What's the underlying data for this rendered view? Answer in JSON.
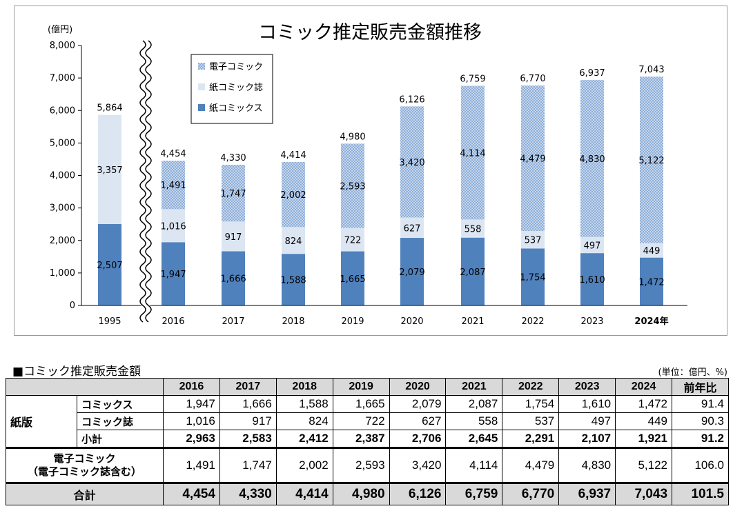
{
  "chart_data": {
    "type": "bar",
    "stacked": true,
    "title": "コミック推定販売金額推移",
    "ylabel": "(億円)",
    "ylim": [
      0,
      8000
    ],
    "y_ticks": [
      "8,000",
      "7,000",
      "6,000",
      "5,000",
      "4,000",
      "3,000",
      "2,000",
      "1,000",
      "0"
    ],
    "y_tick_values": [
      8000,
      7000,
      6000,
      5000,
      4000,
      3000,
      2000,
      1000,
      0
    ],
    "categories": [
      "1995",
      "2016",
      "2017",
      "2018",
      "2019",
      "2020",
      "2021",
      "2022",
      "2023",
      "2024年"
    ],
    "series": [
      {
        "name": "紙コミックス",
        "color": "#4f81bd",
        "values": [
          2507,
          1947,
          1666,
          1588,
          1665,
          2079,
          2087,
          1754,
          1610,
          1472
        ],
        "labels": [
          "2,507",
          "1,947",
          "1,666",
          "1,588",
          "1,665",
          "2,079",
          "2,087",
          "1,754",
          "1,610",
          "1,472"
        ]
      },
      {
        "name": "紙コミック誌",
        "color": "#dce6f2",
        "values": [
          3357,
          1016,
          917,
          824,
          722,
          627,
          558,
          537,
          497,
          449
        ],
        "labels": [
          "3,357",
          "1,016",
          "917",
          "824",
          "722",
          "627",
          "558",
          "537",
          "497",
          "449"
        ]
      },
      {
        "name": "電子コミック",
        "color": "#b9cde5",
        "values": [
          0,
          1491,
          1747,
          2002,
          2593,
          3420,
          4114,
          4479,
          4830,
          5122
        ],
        "labels": [
          "",
          "1,491",
          "1,747",
          "2,002",
          "2,593",
          "3,420",
          "4,114",
          "4,479",
          "4,830",
          "5,122"
        ]
      }
    ],
    "totals": [
      "5,864",
      "4,454",
      "4,330",
      "4,414",
      "4,980",
      "6,126",
      "6,759",
      "6,770",
      "6,937",
      "7,043"
    ],
    "legend_order": [
      "電子コミック",
      "紙コミック誌",
      "紙コミックス"
    ],
    "legend_position": "top-left",
    "axis_break": "between 1995 and 2016"
  },
  "table": {
    "caption": "■コミック推定販売金額",
    "unit": "(単位：億円、%)",
    "headers": [
      "2016",
      "2017",
      "2018",
      "2019",
      "2020",
      "2021",
      "2022",
      "2023",
      "2024",
      "前年比"
    ],
    "group_label": "紙版",
    "rows": {
      "comics": {
        "label": "コミックス",
        "values": [
          "1,947",
          "1,666",
          "1,588",
          "1,665",
          "2,079",
          "2,087",
          "1,754",
          "1,610",
          "1,472",
          "91.4"
        ]
      },
      "magazine": {
        "label": "コミック誌",
        "values": [
          "1,016",
          "917",
          "824",
          "722",
          "627",
          "558",
          "537",
          "497",
          "449",
          "90.3"
        ]
      },
      "subtotal": {
        "label": "小計",
        "values": [
          "2,963",
          "2,583",
          "2,412",
          "2,387",
          "2,706",
          "2,645",
          "2,291",
          "2,107",
          "1,921",
          "91.2"
        ]
      },
      "digital": {
        "label_line1": "電子コミック",
        "label_line2": "（電子コミック誌含む）",
        "values": [
          "1,491",
          "1,747",
          "2,002",
          "2,593",
          "3,420",
          "4,114",
          "4,479",
          "4,830",
          "5,122",
          "106.0"
        ]
      },
      "total": {
        "label": "合計",
        "values": [
          "4,454",
          "4,330",
          "4,414",
          "4,980",
          "6,126",
          "6,759",
          "6,770",
          "6,937",
          "7,043",
          "101.5"
        ]
      }
    }
  }
}
